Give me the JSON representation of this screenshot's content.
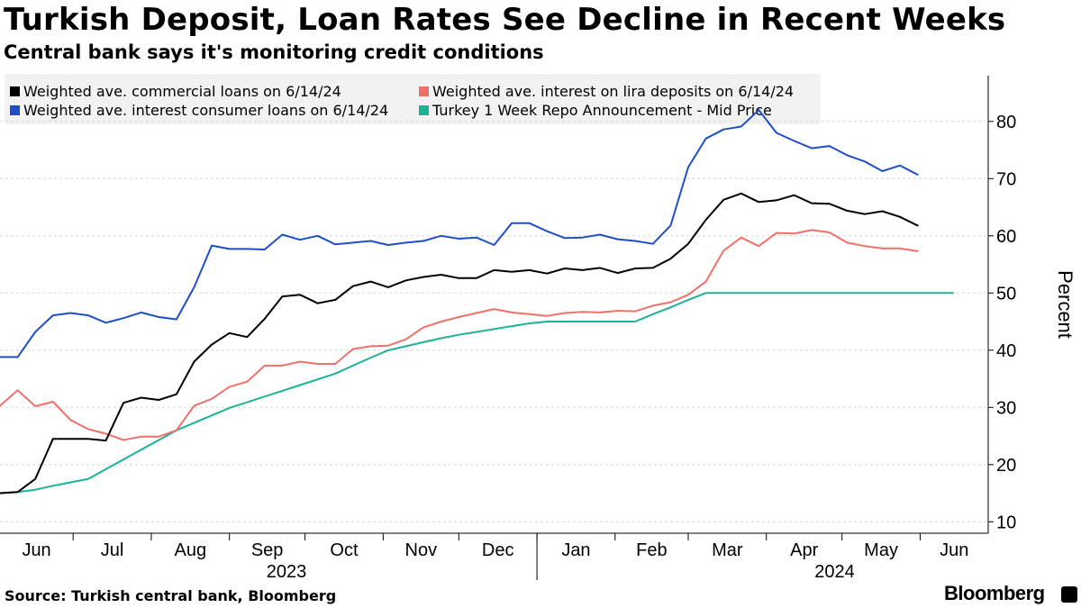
{
  "header": {
    "title": "Turkish Deposit, Loan Rates See Decline in Recent Weeks",
    "subtitle": "Central bank says it's monitoring credit conditions"
  },
  "legend": [
    {
      "label": "Weighted ave. commercial loans on 6/14/24",
      "color": "#000000"
    },
    {
      "label": "Weighted ave. interest on lira deposits on 6/14/24",
      "color": "#f0706a"
    },
    {
      "label": "Weighted ave. interest consumer loans on 6/14/24",
      "color": "#1f4fc7"
    },
    {
      "label": "Turkey 1 Week Repo Announcement - Mid Price",
      "color": "#1ab394"
    }
  ],
  "footer": {
    "source": "Source: Turkish central bank, Bloomberg",
    "brand": "Bloomberg"
  },
  "chart_data": {
    "type": "line",
    "title": "Turkish Deposit, Loan Rates See Decline in Recent Weeks",
    "ylabel": "Percent",
    "ylim": [
      8,
      88
    ],
    "yticks": [
      10,
      20,
      30,
      40,
      50,
      60,
      70,
      80
    ],
    "xlim": [
      "2023-06-02",
      "2024-06-28"
    ],
    "month_ticks": [
      "Jun",
      "Jul",
      "Aug",
      "Sep",
      "Oct",
      "Nov",
      "Dec",
      "Jan",
      "Feb",
      "Mar",
      "Apr",
      "May",
      "Jun"
    ],
    "year_labels": [
      "2023",
      "2024"
    ],
    "dates": [
      "2023-06-02",
      "2023-06-09",
      "2023-06-16",
      "2023-06-23",
      "2023-06-30",
      "2023-07-07",
      "2023-07-14",
      "2023-07-21",
      "2023-07-28",
      "2023-08-04",
      "2023-08-11",
      "2023-08-18",
      "2023-08-25",
      "2023-09-01",
      "2023-09-08",
      "2023-09-15",
      "2023-09-22",
      "2023-09-29",
      "2023-10-06",
      "2023-10-13",
      "2023-10-20",
      "2023-10-27",
      "2023-11-03",
      "2023-11-10",
      "2023-11-17",
      "2023-11-24",
      "2023-12-01",
      "2023-12-08",
      "2023-12-15",
      "2023-12-22",
      "2023-12-29",
      "2024-01-05",
      "2024-01-12",
      "2024-01-19",
      "2024-01-26",
      "2024-02-02",
      "2024-02-09",
      "2024-02-16",
      "2024-02-23",
      "2024-03-01",
      "2024-03-08",
      "2024-03-15",
      "2024-03-22",
      "2024-03-29",
      "2024-04-05",
      "2024-04-12",
      "2024-04-19",
      "2024-04-26",
      "2024-05-03",
      "2024-05-10",
      "2024-05-17",
      "2024-05-24",
      "2024-05-31",
      "2024-06-07",
      "2024-06-14"
    ],
    "series": [
      {
        "name": "Weighted ave. commercial loans on 6/14/24",
        "color": "#000000",
        "values": [
          15,
          15.2,
          17.5,
          24.5,
          24.5,
          24.5,
          24.2,
          30.8,
          31.7,
          31.3,
          32.3,
          38,
          41,
          43,
          42.3,
          45.5,
          49.4,
          49.7,
          48.2,
          48.8,
          51.2,
          52,
          51,
          52.2,
          52.8,
          53.2,
          52.6,
          52.6,
          54,
          53.7,
          54,
          53.4,
          54.3,
          54,
          54.4,
          53.5,
          54.3,
          54.4,
          56,
          58.6,
          62.8,
          66.3,
          67.4,
          65.9,
          66.2,
          67.1,
          65.7,
          65.6,
          64.4,
          63.8,
          64.3,
          63.3,
          61.8,
          null,
          null
        ]
      },
      {
        "name": "Weighted ave. interest on lira deposits on 6/14/24",
        "color": "#f0706a",
        "values": [
          30.3,
          33,
          30.2,
          31,
          27.8,
          26.2,
          25.4,
          24.3,
          24.9,
          24.9,
          26,
          30.3,
          31.5,
          33.6,
          34.5,
          37.3,
          37.3,
          38,
          37.6,
          37.6,
          40.2,
          40.7,
          40.8,
          41.9,
          44,
          45,
          45.8,
          46.5,
          47.2,
          46.6,
          46.3,
          46,
          46.5,
          46.7,
          46.6,
          46.9,
          46.8,
          47.8,
          48.4,
          49.7,
          52,
          57.4,
          59.7,
          58.2,
          60.5,
          60.4,
          61,
          60.6,
          58.8,
          58.2,
          57.8,
          57.8,
          57.3,
          null,
          null
        ]
      },
      {
        "name": "Weighted ave. interest consumer loans on 6/14/24",
        "color": "#1f4fc7",
        "values": [
          38.8,
          38.8,
          43.2,
          46.1,
          46.5,
          46.1,
          44.8,
          45.6,
          46.6,
          45.8,
          45.4,
          51,
          58.3,
          57.7,
          57.7,
          57.6,
          60.2,
          59.3,
          60,
          58.5,
          58.8,
          59.1,
          58.4,
          58.8,
          59.1,
          60,
          59.5,
          59.7,
          58.4,
          62.2,
          62.2,
          60.8,
          59.6,
          59.7,
          60.2,
          59.4,
          59.1,
          58.6,
          61.8,
          72,
          77,
          78.6,
          79.1,
          82,
          78,
          76.6,
          75.3,
          75.7,
          74.1,
          73,
          71.3,
          72.3,
          70.7,
          null,
          null
        ]
      },
      {
        "name": "Turkey 1 Week Repo Announcement - Mid Price",
        "color": "#1ab394",
        "values": [
          15,
          15.2,
          15.6,
          16.3,
          16.9,
          17.5,
          19.2,
          20.9,
          22.6,
          24.3,
          26,
          27.3,
          28.6,
          29.9,
          30.9,
          31.9,
          32.9,
          33.9,
          34.9,
          35.9,
          37.3,
          38.7,
          40,
          40.7,
          41.4,
          42.1,
          42.7,
          43.2,
          43.7,
          44.2,
          44.7,
          45,
          45,
          45,
          45,
          45,
          45,
          46.3,
          47.5,
          48.8,
          50,
          50,
          50,
          50,
          50,
          50,
          50,
          50,
          50,
          50,
          50,
          50,
          50,
          50,
          50
        ]
      }
    ]
  }
}
